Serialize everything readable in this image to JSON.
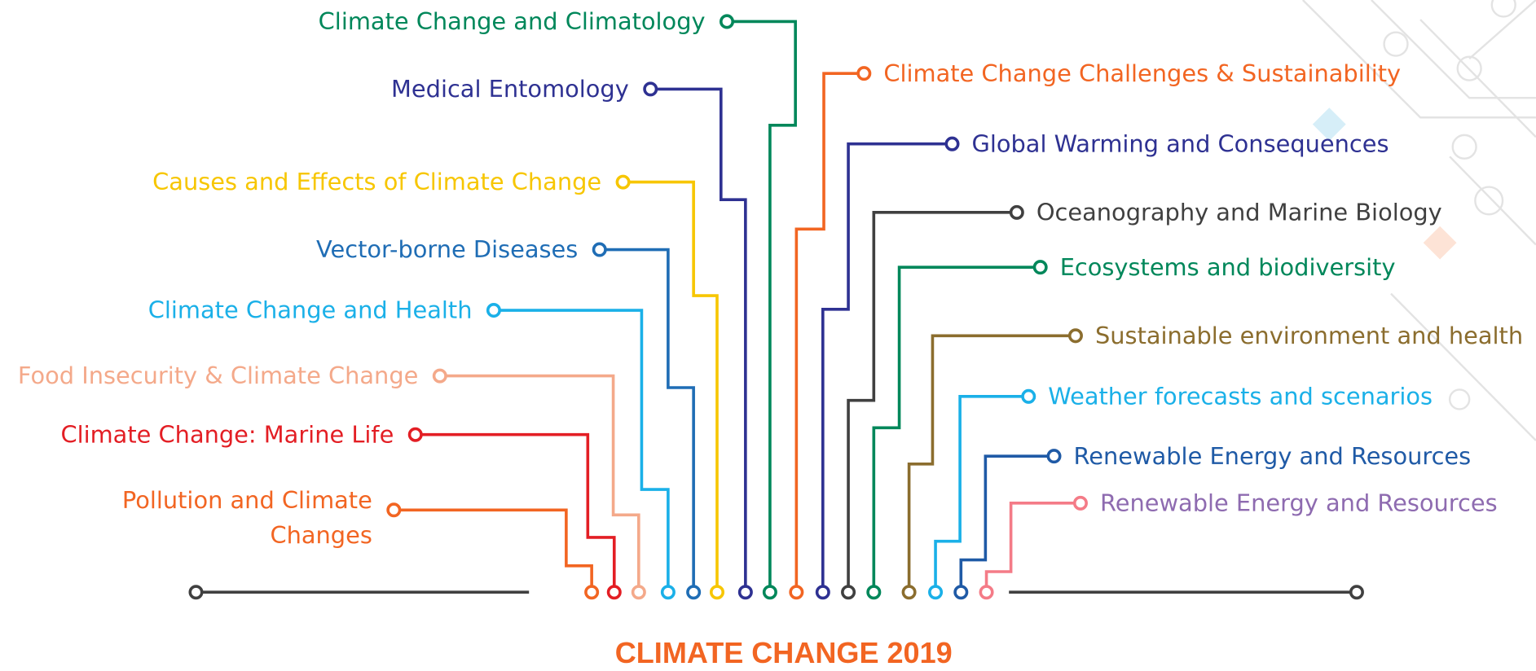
{
  "title": "CLIMATE CHANGE 2019",
  "topics": [
    {
      "lines": [
        "Pollution and Climate",
        "Changes"
      ]
    },
    {
      "lines": [
        "Climate Change: Marine Life"
      ]
    },
    {
      "lines": [
        "Food Insecurity & Climate Change"
      ]
    },
    {
      "lines": [
        "Climate Change and Health"
      ]
    },
    {
      "lines": [
        "Vector-borne Diseases"
      ]
    },
    {
      "lines": [
        "Causes and Effects of Climate Change"
      ]
    },
    {
      "lines": [
        "Medical Entomology"
      ]
    },
    {
      "lines": [
        "Climate Change and Climatology"
      ]
    },
    {
      "lines": [
        "Climate Change Challenges & Sustainability"
      ]
    },
    {
      "lines": [
        "Global Warming and Consequences"
      ]
    },
    {
      "lines": [
        "Oceanography and Marine Biology"
      ]
    },
    {
      "lines": [
        "Ecosystems and biodiversity"
      ]
    },
    {
      "lines": [
        "Sustainable environment and health"
      ]
    },
    {
      "lines": [
        "Weather forecasts and scenarios"
      ]
    },
    {
      "lines": [
        "Renewable Energy and Resources"
      ]
    },
    {
      "lines": [
        "Renewable Energy and Resources"
      ]
    }
  ]
}
